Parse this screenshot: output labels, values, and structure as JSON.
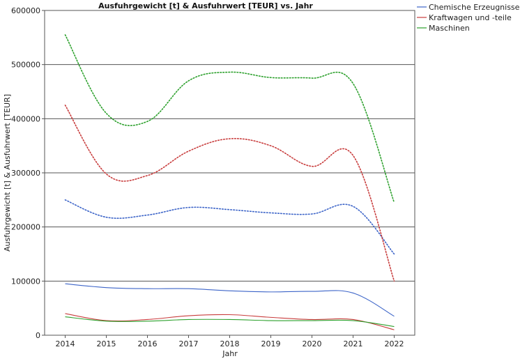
{
  "chart_data": {
    "type": "line",
    "title": "Ausfuhrgewicht [t] & Ausfuhrwert [TEUR] vs. Jahr",
    "xlabel": "Jahr",
    "ylabel": "Ausfuhrgewicht [t] & Ausfuhrwert [TEUR]",
    "x": [
      2014,
      2015,
      2016,
      2017,
      2018,
      2019,
      2020,
      2021,
      2022
    ],
    "xlim": [
      2013.5,
      2022.5
    ],
    "ylim": [
      0,
      600000
    ],
    "yticks": [
      0,
      100000,
      200000,
      300000,
      400000,
      500000,
      600000
    ],
    "ytick_labels": [
      "0",
      "100000",
      "200000",
      "300000",
      "400000",
      "500000",
      "600000"
    ],
    "grid": "horizontal",
    "legend_position": "top-right",
    "series": [
      {
        "name": "Chemische Erzeugnisse",
        "measure": "Ausfuhrwert [TEUR]",
        "style": "dotted",
        "color": "#3c64c8",
        "values": [
          250000,
          218000,
          222000,
          236000,
          232000,
          226000,
          224000,
          238000,
          150000
        ]
      },
      {
        "name": "Kraftwagen und -teile",
        "measure": "Ausfuhrwert [TEUR]",
        "style": "dotted",
        "color": "#c83c3c",
        "values": [
          425000,
          298000,
          295000,
          340000,
          363000,
          350000,
          312000,
          332000,
          100000
        ]
      },
      {
        "name": "Maschinen",
        "measure": "Ausfuhrwert [TEUR]",
        "style": "dotted",
        "color": "#2ca02c",
        "values": [
          555000,
          410000,
          395000,
          470000,
          486000,
          476000,
          475000,
          465000,
          245000
        ]
      },
      {
        "name": "Chemische Erzeugnisse",
        "measure": "Ausfuhrgewicht [t]",
        "style": "solid",
        "color": "#3c64c8",
        "values": [
          95000,
          88000,
          86000,
          86000,
          82000,
          80000,
          81000,
          78000,
          35000
        ]
      },
      {
        "name": "Kraftwagen und -teile",
        "measure": "Ausfuhrgewicht [t]",
        "style": "solid",
        "color": "#c83c3c",
        "values": [
          40000,
          27000,
          29000,
          36000,
          38000,
          33000,
          29000,
          29000,
          10000
        ]
      },
      {
        "name": "Maschinen",
        "measure": "Ausfuhrgewicht [t]",
        "style": "solid",
        "color": "#2ca02c",
        "values": [
          34000,
          26000,
          26000,
          29000,
          29000,
          27000,
          27000,
          27000,
          16000
        ]
      }
    ],
    "legend": [
      {
        "label": "Chemische Erzeugnisse",
        "color": "#3c64c8"
      },
      {
        "label": "Kraftwagen und -teile",
        "color": "#c83c3c"
      },
      {
        "label": "Maschinen",
        "color": "#2ca02c"
      }
    ]
  }
}
